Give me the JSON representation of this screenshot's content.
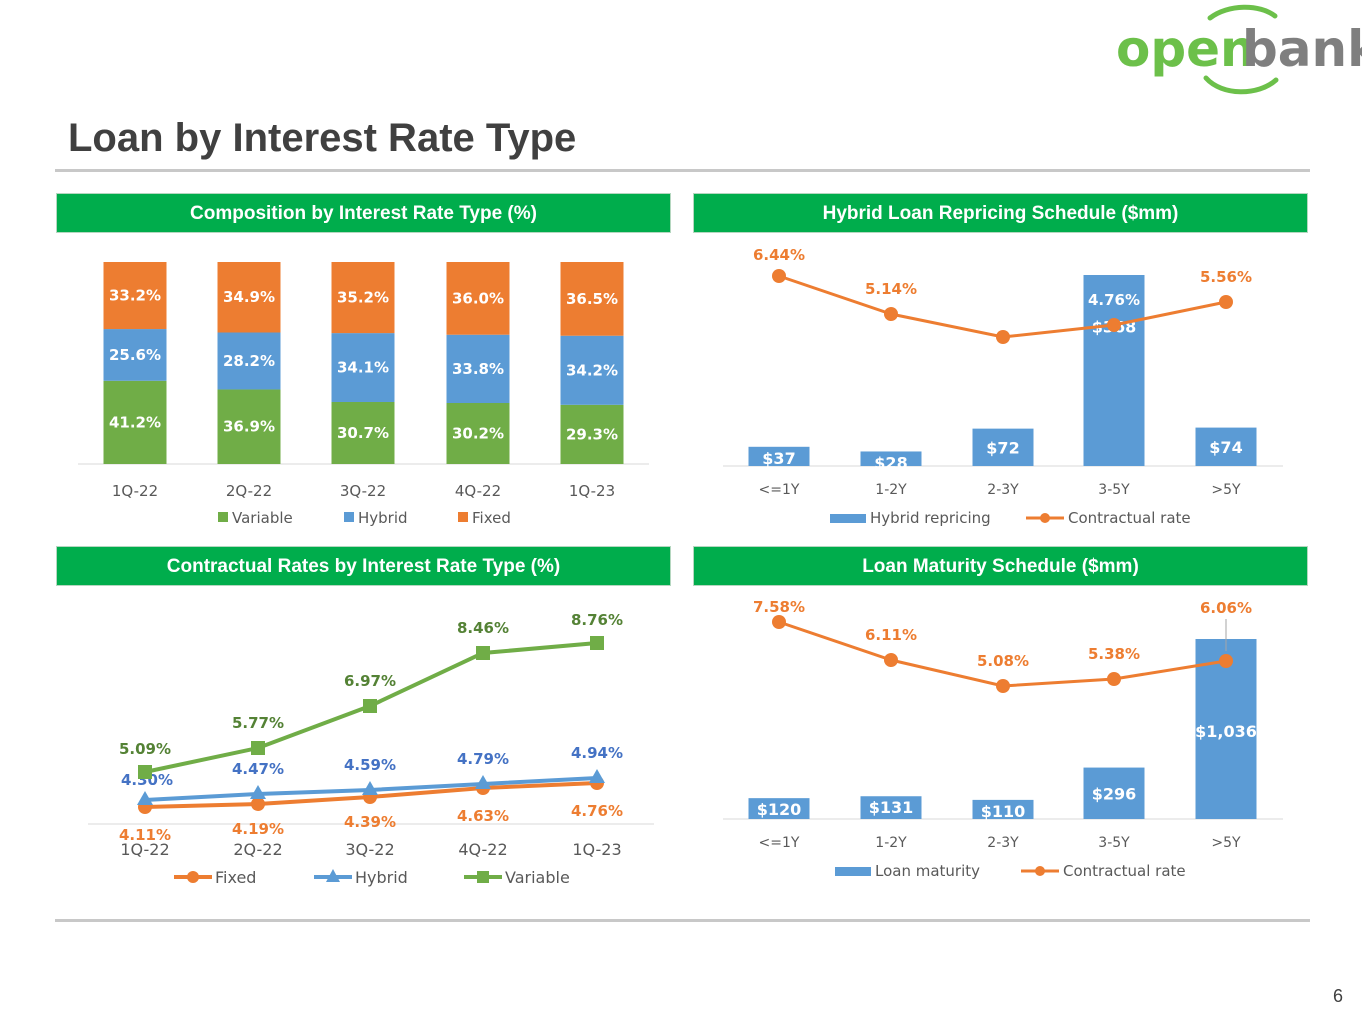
{
  "logo": {
    "text_a": "open",
    "text_b": "bank"
  },
  "page": {
    "title": "Loan by Interest Rate Type",
    "number": "6"
  },
  "colors": {
    "green": "#70ad47",
    "blue": "#5b9bd5",
    "orange": "#ed7d31",
    "header": "#00ad4c",
    "variable_label": "#548235",
    "hybrid_label": "#4472c4",
    "fixed_label": "#ed7d31"
  },
  "panels": {
    "composition": "Composition by Interest Rate Type (%)",
    "repricing": "Hybrid Loan Repricing Schedule ($mm)",
    "contractual": "Contractual Rates by Interest Rate Type (%)",
    "maturity": "Loan Maturity Schedule ($mm)"
  },
  "chart_data": [
    {
      "id": "composition",
      "type": "bar",
      "stacked": true,
      "categories": [
        "1Q-22",
        "2Q-22",
        "3Q-22",
        "4Q-22",
        "1Q-23"
      ],
      "series": [
        {
          "name": "Variable",
          "values": [
            41.2,
            36.9,
            30.7,
            30.2,
            29.3
          ],
          "labels": [
            "41.2%",
            "36.9%",
            "30.7%",
            "30.2%",
            "29.3%"
          ]
        },
        {
          "name": "Hybrid",
          "values": [
            25.6,
            28.2,
            34.1,
            33.8,
            34.2
          ],
          "labels": [
            "25.6%",
            "28.2%",
            "34.1%",
            "33.8%",
            "34.2%"
          ]
        },
        {
          "name": "Fixed",
          "values": [
            33.2,
            34.9,
            35.2,
            36.0,
            36.5
          ],
          "labels": [
            "33.2%",
            "34.9%",
            "35.2%",
            "36.0%",
            "36.5%"
          ]
        }
      ],
      "ylim": [
        0,
        100
      ],
      "legend": [
        "Variable",
        "Hybrid",
        "Fixed"
      ]
    },
    {
      "id": "repricing",
      "type": "bar+line",
      "categories": [
        "<=1Y",
        "1-2Y",
        "2-3Y",
        "3-5Y",
        ">5Y"
      ],
      "bars": {
        "name": "Hybrid repricing",
        "values": [
          37,
          28,
          72,
          368,
          74
        ],
        "labels": [
          "$37",
          "$28",
          "$72",
          "$368",
          "$74"
        ]
      },
      "line": {
        "name": "Contractual rate",
        "values": [
          6.44,
          5.14,
          null,
          4.76,
          5.56
        ],
        "labels": [
          "6.44%",
          "5.14%",
          "",
          "4.76%",
          "5.56%"
        ]
      },
      "legend": [
        "Hybrid repricing",
        "Contractual rate"
      ]
    },
    {
      "id": "contractual",
      "type": "line",
      "categories": [
        "1Q-22",
        "2Q-22",
        "3Q-22",
        "4Q-22",
        "1Q-23"
      ],
      "series": [
        {
          "name": "Fixed",
          "values": [
            4.11,
            4.19,
            4.39,
            4.63,
            4.76
          ],
          "labels": [
            "4.11%",
            "4.19%",
            "4.39%",
            "4.63%",
            "4.76%"
          ]
        },
        {
          "name": "Hybrid",
          "values": [
            4.3,
            4.47,
            4.59,
            4.79,
            4.94
          ],
          "labels": [
            "4.30%",
            "4.47%",
            "4.59%",
            "4.79%",
            "4.94%"
          ]
        },
        {
          "name": "Variable",
          "values": [
            5.09,
            5.77,
            6.97,
            8.46,
            8.76
          ],
          "labels": [
            "5.09%",
            "5.77%",
            "6.97%",
            "8.46%",
            "8.76%"
          ]
        }
      ],
      "legend": [
        "Fixed",
        "Hybrid",
        "Variable"
      ]
    },
    {
      "id": "maturity",
      "type": "bar+line",
      "categories": [
        "<=1Y",
        "1-2Y",
        "2-3Y",
        "3-5Y",
        ">5Y"
      ],
      "bars": {
        "name": "Loan maturity",
        "values": [
          120,
          131,
          110,
          296,
          1036
        ],
        "labels": [
          "$120",
          "$131",
          "$110",
          "$296",
          "$1,036"
        ]
      },
      "line": {
        "name": "Contractual rate",
        "values": [
          7.58,
          6.11,
          5.08,
          5.38,
          6.06
        ],
        "labels": [
          "7.58%",
          "6.11%",
          "5.08%",
          "5.38%",
          "6.06%"
        ]
      },
      "legend": [
        "Loan maturity",
        "Contractual rate"
      ]
    }
  ]
}
